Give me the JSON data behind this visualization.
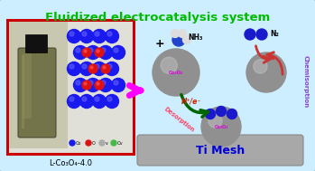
{
  "title": "Fluidized electrocatalysis system",
  "title_color": "#00bb00",
  "title_fontsize": 9.5,
  "bg_color": "#cceeff",
  "label_lco": "L-Co₃O₄-4.0",
  "label_timesh": "Ti Mesh",
  "label_timesh_color": "#0000dd",
  "label_co3o4": "Co₃O₄",
  "label_nh3": "NH₃",
  "label_n2": "N₂",
  "label_desorption": "Desorption",
  "label_chemisorption": "Chemisorption",
  "label_hpe": "H⁺/e⁻",
  "arrow_pink_color": "#ff00ff",
  "arrow_dark_green": "#006600",
  "arrow_red": "#cc3333",
  "chemi_color": "#8844cc",
  "desorption_color": "#ff4466",
  "hpe_color": "#cc2200",
  "co3o4_color": "#dd00dd",
  "red_border": "#cc0000",
  "timesh_gray": "#a8a8a8"
}
